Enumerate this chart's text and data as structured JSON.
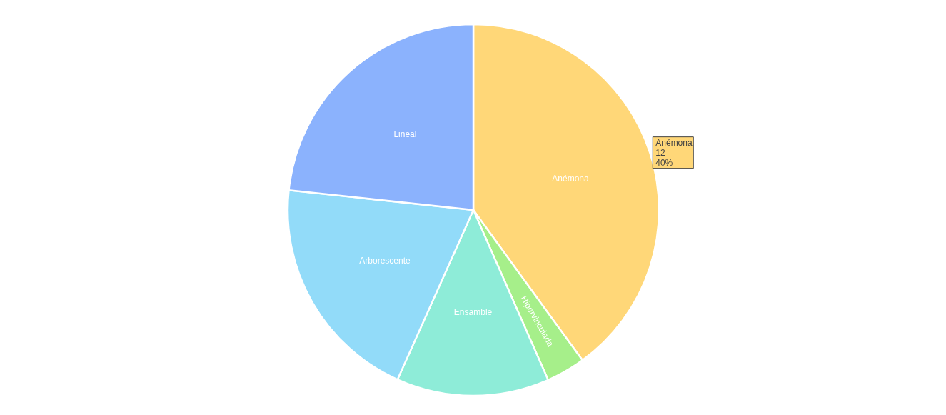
{
  "chart_data": {
    "type": "pie",
    "categories": [
      "Anémona",
      "Hipervinculada",
      "Ensamble",
      "Arborescente",
      "Lineal"
    ],
    "values": [
      40,
      3.4,
      13.3,
      20,
      23.3
    ],
    "colors": [
      "#ffd778",
      "#a6ef8a",
      "#8eecd8",
      "#92dbf9",
      "#8bb2fd"
    ],
    "annotations": [
      "Anémona\n12\n40%"
    ],
    "legend": false
  }
}
